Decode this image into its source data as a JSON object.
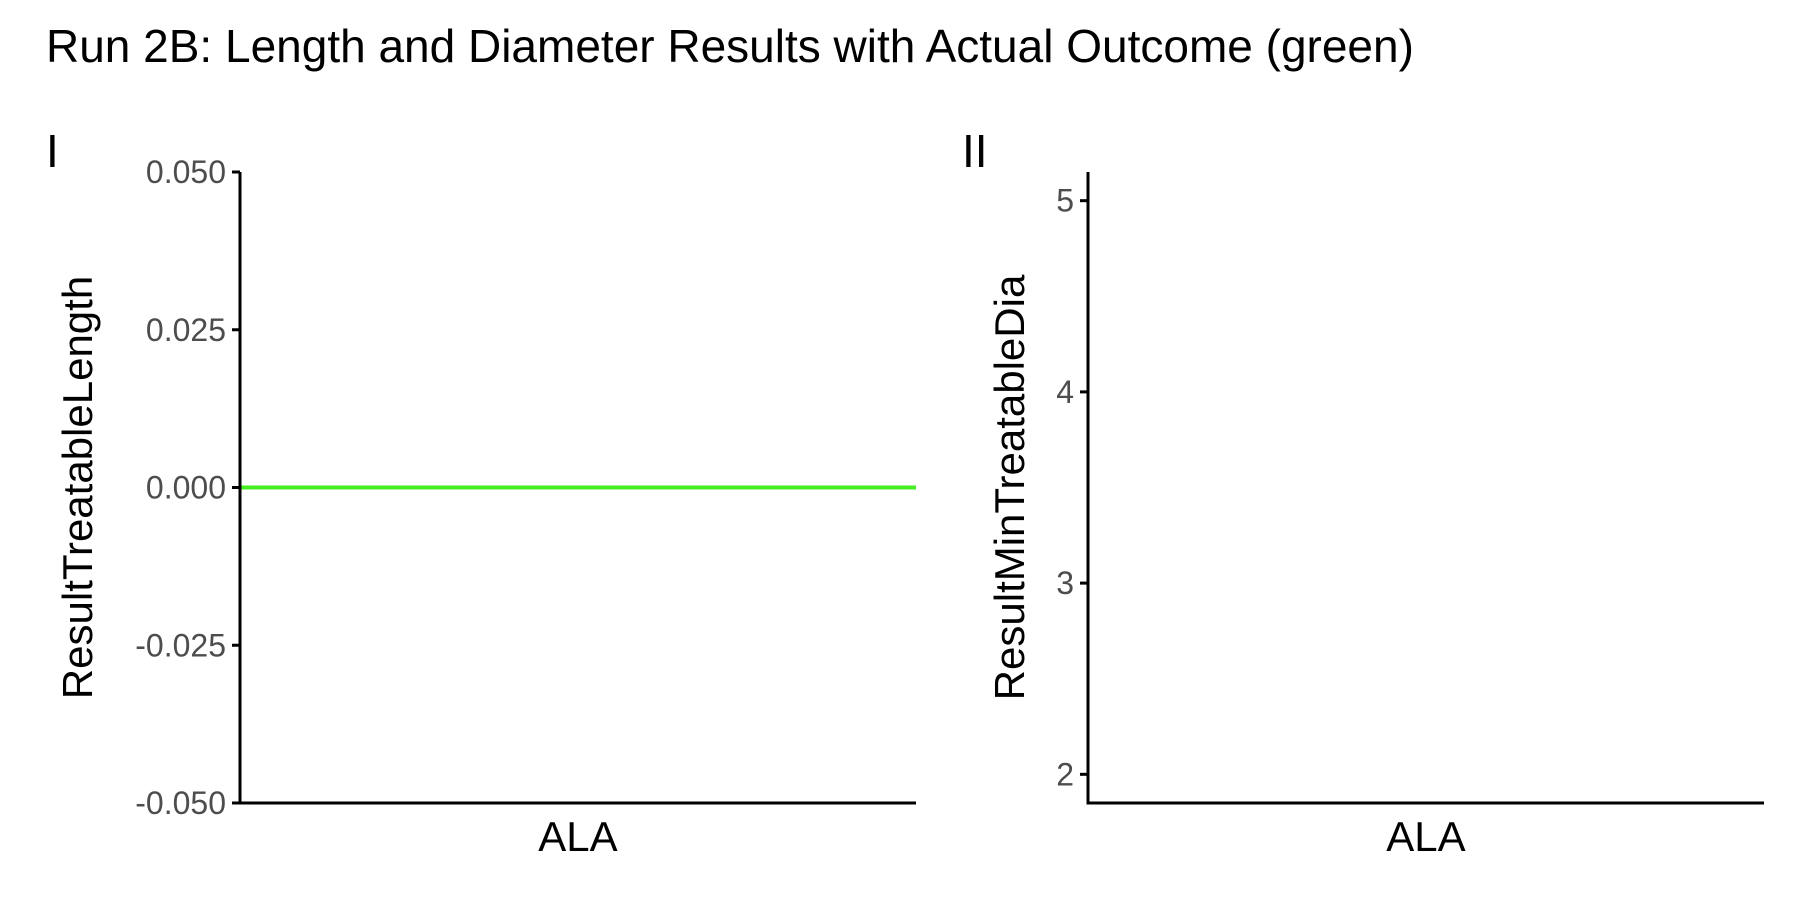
{
  "title": "Run 2B: Length and Diameter Results with Actual Outcome (green)",
  "colors": {
    "actual_outcome": "#44EE22",
    "axis": "#000000",
    "tick_label": "#4D4D4D",
    "text": "#000000"
  },
  "chart_data": [
    {
      "type": "line",
      "panel_tag": "I",
      "xlabel": "",
      "ylabel": "ResultTreatableLength",
      "categories": [
        "ALA"
      ],
      "ylim": [
        -0.05,
        0.05
      ],
      "yticks": [
        0.05,
        0.025,
        0.0,
        -0.025,
        -0.05
      ],
      "ytick_labels": [
        "0.050",
        "0.025",
        "0.000",
        "-0.025",
        "-0.050"
      ],
      "grid": false,
      "reference_lines": [
        {
          "orientation": "horizontal",
          "y": 0.0,
          "color": "#44EE22"
        }
      ],
      "series": []
    },
    {
      "type": "line",
      "panel_tag": "II",
      "xlabel": "",
      "ylabel": "ResultMinTreatableDia",
      "categories": [
        "ALA"
      ],
      "ylim": [
        1.85,
        5.15
      ],
      "yticks": [
        5,
        4,
        3,
        2
      ],
      "ytick_labels": [
        "5",
        "4",
        "3",
        "2"
      ],
      "grid": false,
      "reference_lines": [],
      "series": []
    }
  ]
}
